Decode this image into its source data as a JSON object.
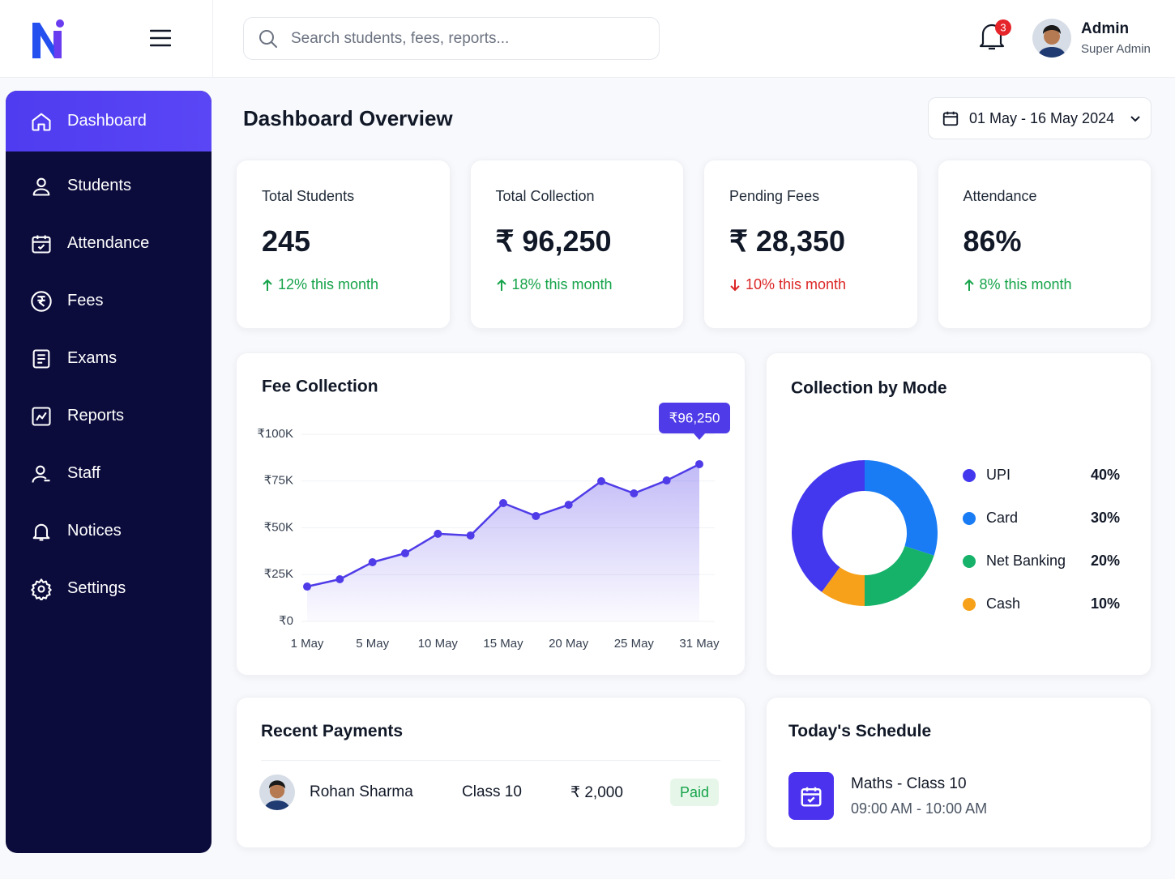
{
  "header": {
    "search_placeholder": "Search students, fees, reports...",
    "notification_count": 3,
    "user": {
      "name": "Admin",
      "role": "Super Admin"
    }
  },
  "sidebar": {
    "items": [
      "Dashboard",
      "Students",
      "Attendance",
      "Fees",
      "Exams",
      "Reports",
      "Staff",
      "Notices",
      "Settings"
    ],
    "active": 0
  },
  "page": {
    "title": "Dashboard Overview",
    "date_range": "01 May - 16 May 2024"
  },
  "stats": [
    {
      "label": "Total Students",
      "value": "245",
      "change": "12% this month",
      "trend": "up"
    },
    {
      "label": "Total Collection",
      "value": "₹ 96,250",
      "change": "18% this month",
      "trend": "up"
    },
    {
      "label": "Pending Fees",
      "value": "₹ 28,350",
      "change": "10% this month",
      "trend": "down"
    },
    {
      "label": "Attendance",
      "value": "86%",
      "change": "8% this month",
      "trend": "up"
    }
  ],
  "chart_data": [
    {
      "type": "line",
      "title": "Fee Collection",
      "categories": [
        "1 May",
        null,
        "5 May",
        null,
        "10 May",
        null,
        "15 May",
        null,
        "20 May",
        null,
        "25 May",
        null,
        "31 May"
      ],
      "values": [
        18600,
        22500,
        31600,
        36400,
        46800,
        45900,
        63200,
        56300,
        62300,
        74900,
        68400,
        75300,
        84000
      ],
      "color": "#4f3ce8",
      "ylim": [
        0,
        100000
      ],
      "yticks": [
        {
          "value": 0,
          "label": "₹0"
        },
        {
          "value": 25000,
          "label": "₹25K"
        },
        {
          "value": 50000,
          "label": "₹50K"
        },
        {
          "value": 75000,
          "label": "₹75K"
        },
        {
          "value": 100000,
          "label": "₹100K"
        }
      ],
      "grid": true,
      "annotation": "₹96,250"
    },
    {
      "type": "donut",
      "title": "Collection by Mode",
      "categories": [
        "UPI",
        "Card",
        "Net Banking",
        "Cash"
      ],
      "values": [
        40,
        30,
        20,
        10
      ],
      "value_labels": [
        "40%",
        "30%",
        "20%",
        "10%"
      ],
      "colors": [
        "#4338ee",
        "#1a7cf5",
        "#16b26a",
        "#f7a019"
      ]
    }
  ],
  "recent_payments": {
    "title": "Recent Payments",
    "rows": [
      {
        "name": "Rohan Sharma",
        "class": "Class 10",
        "amount": "₹ 2,000",
        "status": "Paid"
      }
    ]
  },
  "schedule": {
    "title": "Today's Schedule",
    "items": [
      {
        "subject": "Maths - Class 10",
        "time": "09:00 AM - 10:00 AM"
      }
    ]
  }
}
